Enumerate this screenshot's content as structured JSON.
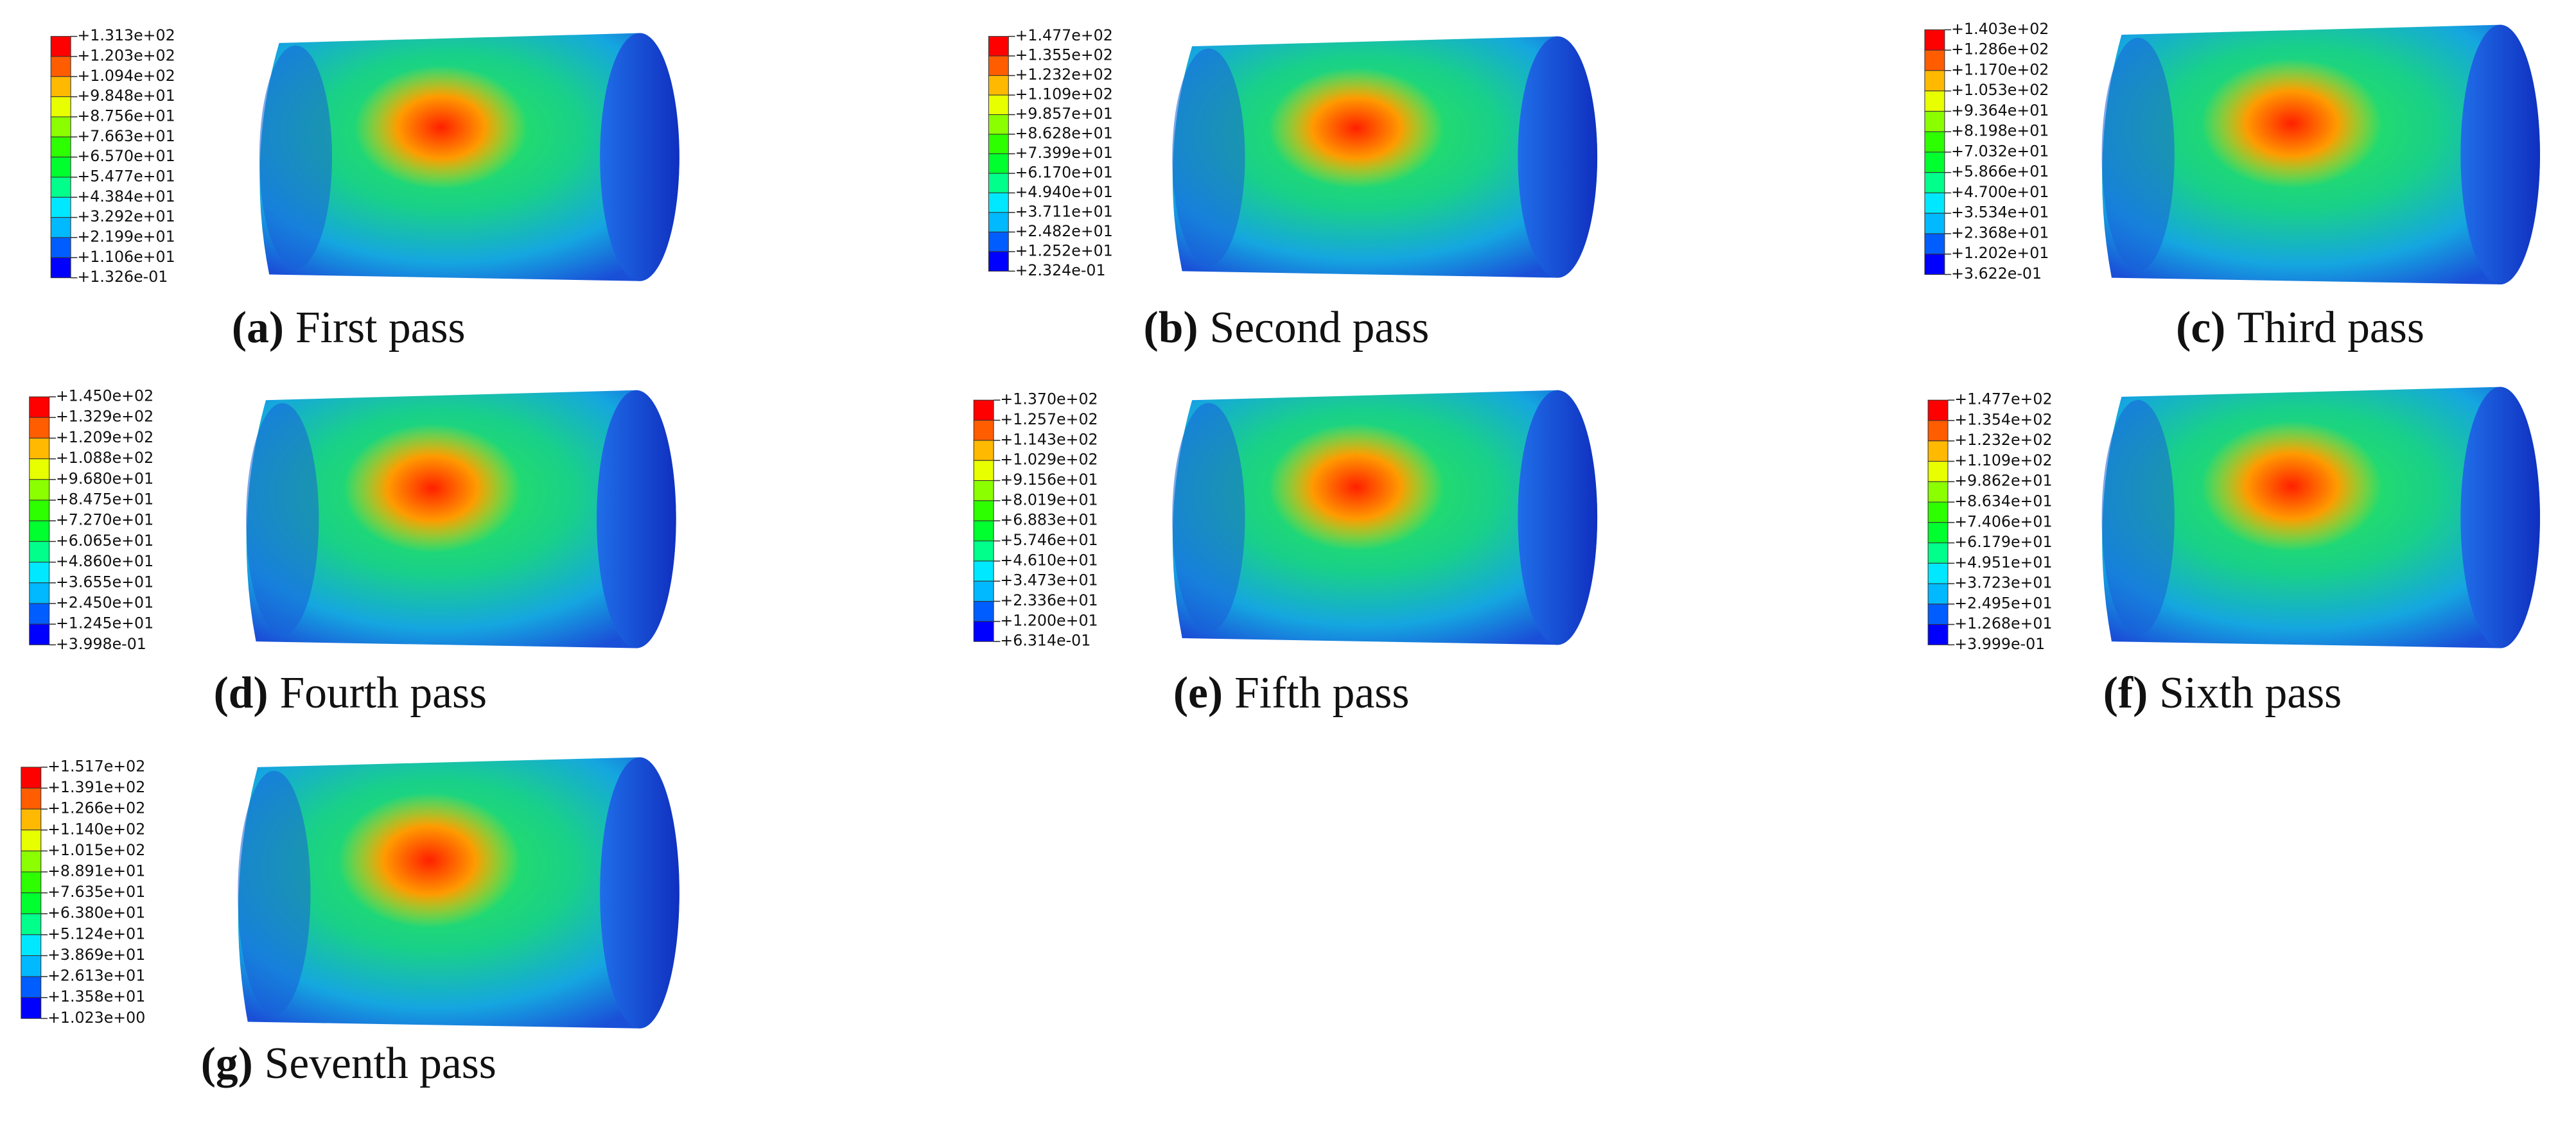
{
  "panels": [
    {
      "letter": "(a)",
      "caption": "First pass",
      "legend": [
        "+1.313e+02",
        "+1.203e+02",
        "+1.094e+02",
        "+9.848e+01",
        "+8.756e+01",
        "+7.663e+01",
        "+6.570e+01",
        "+5.477e+01",
        "+4.384e+01",
        "+3.292e+01",
        "+2.199e+01",
        "+1.106e+01",
        "+1.326e-01"
      ]
    },
    {
      "letter": "(b)",
      "caption": "Second pass",
      "legend": [
        "+1.477e+02",
        "+1.355e+02",
        "+1.232e+02",
        "+1.109e+02",
        "+9.857e+01",
        "+8.628e+01",
        "+7.399e+01",
        "+6.170e+01",
        "+4.940e+01",
        "+3.711e+01",
        "+2.482e+01",
        "+1.252e+01",
        "+2.324e-01"
      ]
    },
    {
      "letter": "(c)",
      "caption": "Third pass",
      "legend": [
        "+1.403e+02",
        "+1.286e+02",
        "+1.170e+02",
        "+1.053e+02",
        "+9.364e+01",
        "+8.198e+01",
        "+7.032e+01",
        "+5.866e+01",
        "+4.700e+01",
        "+3.534e+01",
        "+2.368e+01",
        "+1.202e+01",
        "+3.622e-01"
      ]
    },
    {
      "letter": "(d)",
      "caption": "Fourth pass",
      "legend": [
        "+1.450e+02",
        "+1.329e+02",
        "+1.209e+02",
        "+1.088e+02",
        "+9.680e+01",
        "+8.475e+01",
        "+7.270e+01",
        "+6.065e+01",
        "+4.860e+01",
        "+3.655e+01",
        "+2.450e+01",
        "+1.245e+01",
        "+3.998e-01"
      ]
    },
    {
      "letter": "(e)",
      "caption": "Fifth pass",
      "legend": [
        "+1.370e+02",
        "+1.257e+02",
        "+1.143e+02",
        "+1.029e+02",
        "+9.156e+01",
        "+8.019e+01",
        "+6.883e+01",
        "+5.746e+01",
        "+4.610e+01",
        "+3.473e+01",
        "+2.336e+01",
        "+1.200e+01",
        "+6.314e-01"
      ]
    },
    {
      "letter": "(f)",
      "caption": "Sixth pass",
      "legend": [
        "+1.477e+02",
        "+1.354e+02",
        "+1.232e+02",
        "+1.109e+02",
        "+9.862e+01",
        "+8.634e+01",
        "+7.406e+01",
        "+6.179e+01",
        "+4.951e+01",
        "+3.723e+01",
        "+2.495e+01",
        "+1.268e+01",
        "+3.999e-01"
      ]
    },
    {
      "letter": "(g)",
      "caption": "Seventh pass",
      "legend": [
        "+1.517e+02",
        "+1.391e+02",
        "+1.266e+02",
        "+1.140e+02",
        "+1.015e+02",
        "+8.891e+01",
        "+7.635e+01",
        "+6.380e+01",
        "+5.124e+01",
        "+3.869e+01",
        "+2.613e+01",
        "+1.358e+01",
        "+1.023e+00"
      ]
    }
  ]
}
